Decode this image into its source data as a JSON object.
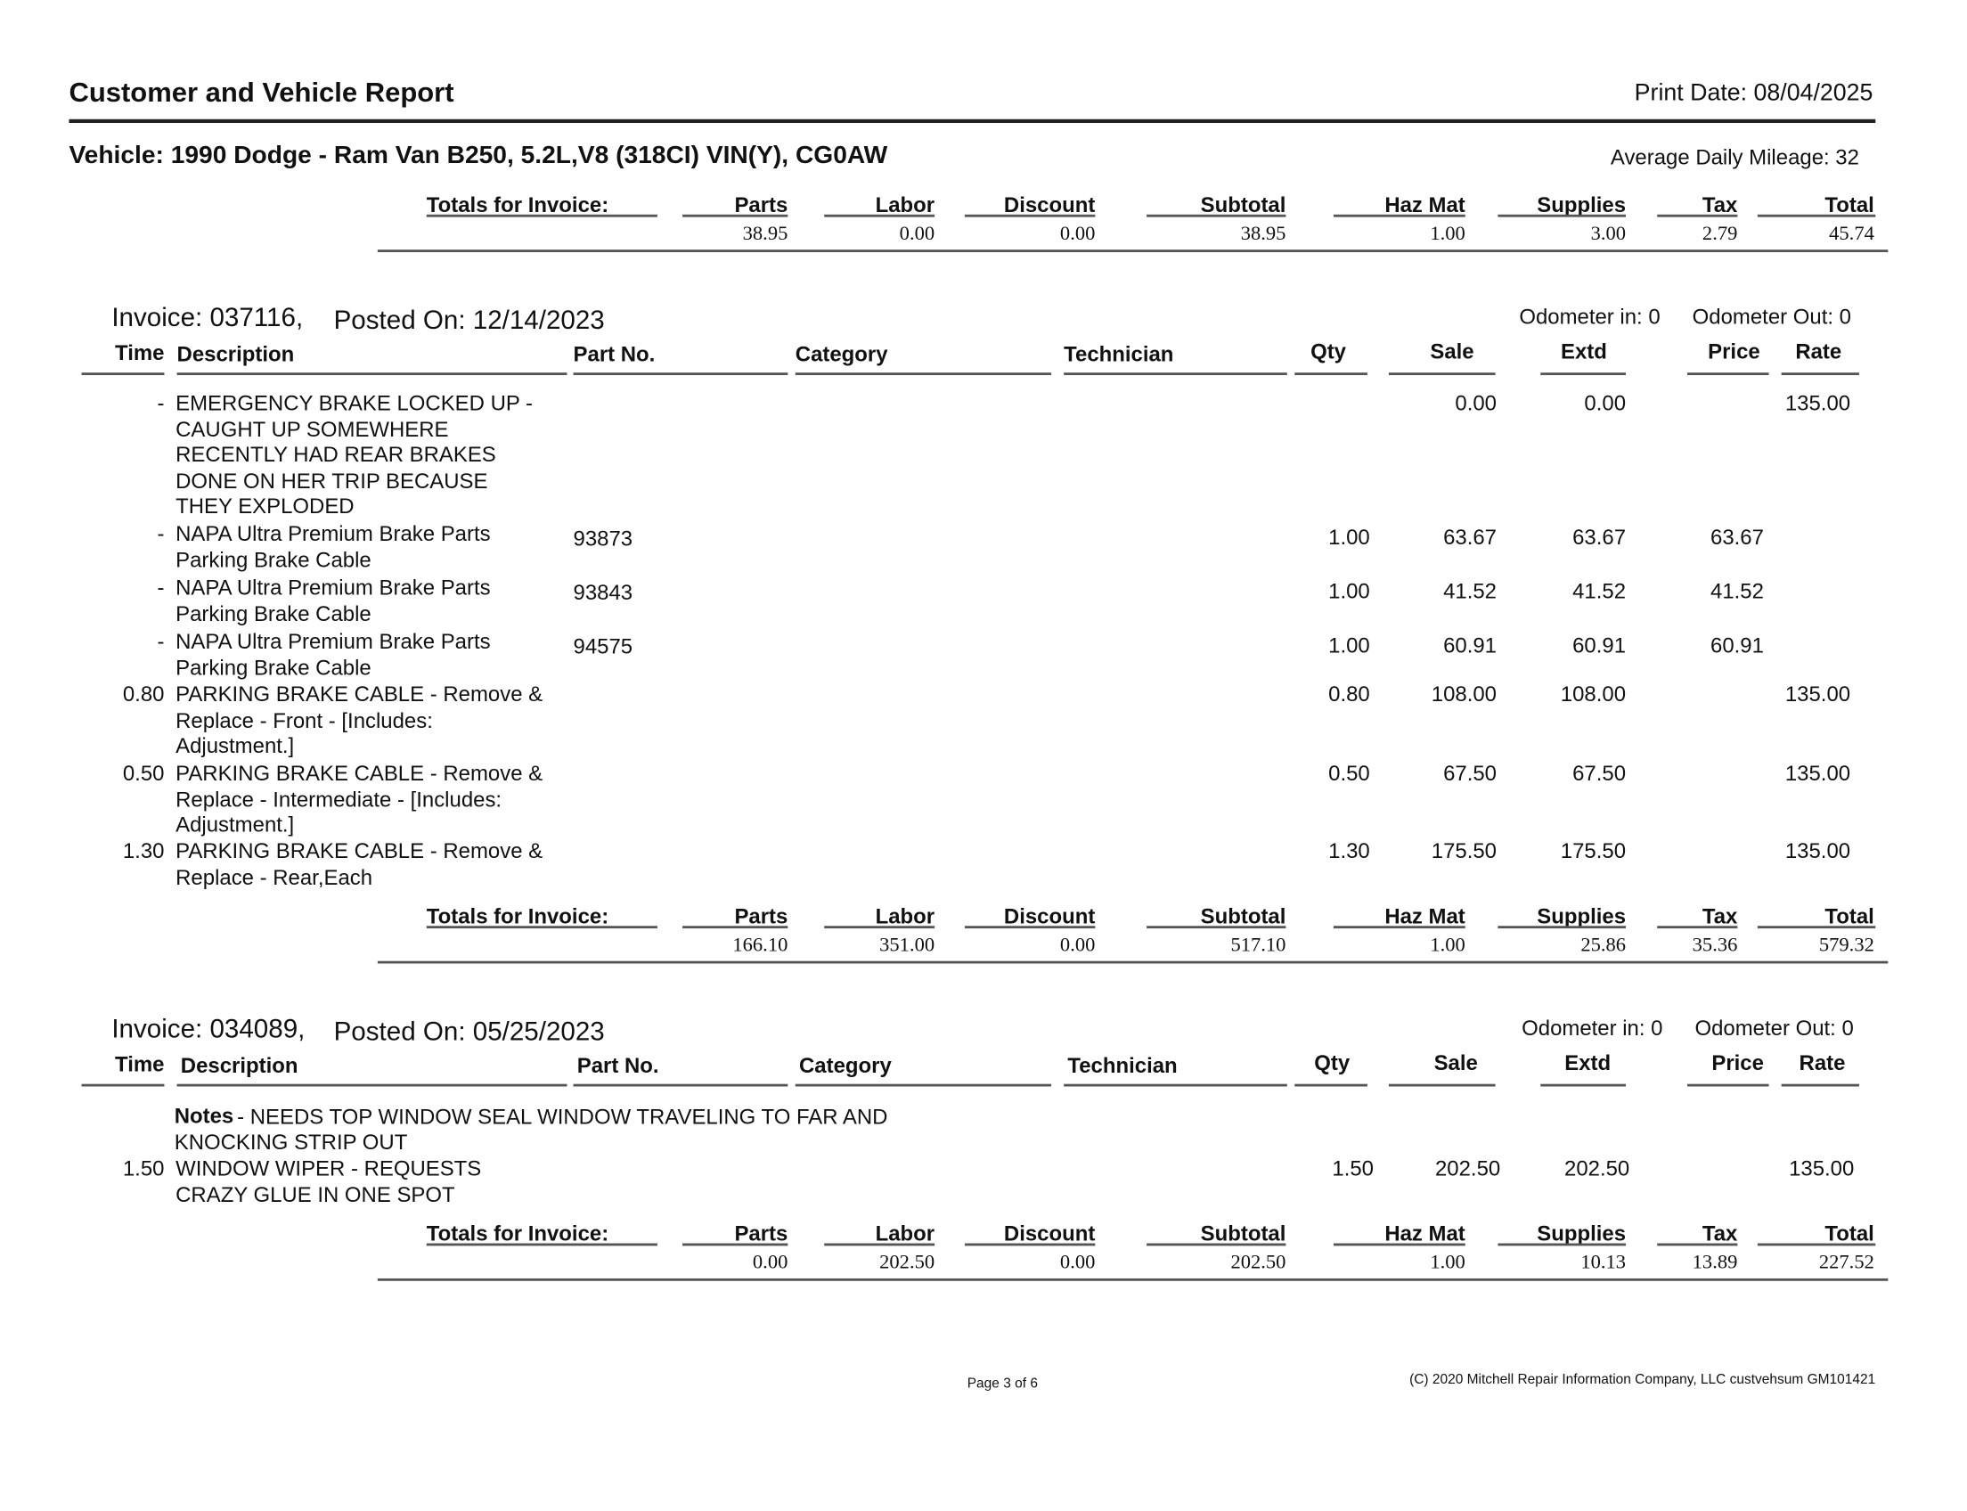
{
  "report": {
    "title": "Customer and Vehicle Report",
    "print_date": "Print Date: 08/04/2025",
    "vehicle": "Vehicle: 1990 Dodge - Ram Van B250, 5.2L,V8 (318CI) VIN(Y), CG0AW",
    "avg_mileage": "Average Daily Mileage: 32"
  },
  "totals_headers": {
    "label": "Totals for Invoice:",
    "parts": "Parts",
    "labor": "Labor",
    "discount": "Discount",
    "subtotal": "Subtotal",
    "hazmat": "Haz Mat",
    "supplies": "Supplies",
    "tax": "Tax",
    "total": "Total"
  },
  "item_headers": {
    "time": "Time",
    "description": "Description",
    "part_no": "Part No.",
    "category": "Category",
    "technician": "Technician",
    "qty": "Qty",
    "sale": "Sale",
    "extd": "Extd",
    "price": "Price",
    "rate": "Rate"
  },
  "vehicle_totals": {
    "parts": "38.95",
    "labor": "0.00",
    "discount": "0.00",
    "subtotal": "38.95",
    "hazmat": "1.00",
    "supplies": "3.00",
    "tax": "2.79",
    "total": "45.74"
  },
  "invoices": [
    {
      "invoice": "Invoice: 037116,",
      "posted": "Posted On:  12/14/2023",
      "odometer_in": "Odometer in: 0",
      "odometer_out": "Odometer Out: 0",
      "items": [
        {
          "time": "-",
          "desc": [
            "EMERGENCY BRAKE LOCKED UP -",
            "CAUGHT UP SOMEWHERE",
            "RECENTLY HAD REAR BRAKES",
            "DONE ON HER TRIP BECAUSE",
            "THEY EXPLODED"
          ],
          "part_no": "",
          "qty": "",
          "sale": "0.00",
          "extd": "0.00",
          "price": "",
          "rate": "135.00"
        },
        {
          "time": "-",
          "desc": [
            "NAPA Ultra Premium Brake Parts",
            "Parking Brake Cable"
          ],
          "part_no": "93873",
          "qty": "1.00",
          "sale": "63.67",
          "extd": "63.67",
          "price": "63.67",
          "rate": ""
        },
        {
          "time": "-",
          "desc": [
            "NAPA Ultra Premium Brake Parts",
            "Parking Brake Cable"
          ],
          "part_no": "93843",
          "qty": "1.00",
          "sale": "41.52",
          "extd": "41.52",
          "price": "41.52",
          "rate": ""
        },
        {
          "time": "-",
          "desc": [
            "NAPA Ultra Premium Brake Parts",
            "Parking Brake Cable"
          ],
          "part_no": "94575",
          "qty": "1.00",
          "sale": "60.91",
          "extd": "60.91",
          "price": "60.91",
          "rate": ""
        },
        {
          "time": "0.80",
          "desc": [
            "PARKING BRAKE CABLE - Remove &",
            "Replace - Front - [Includes:",
            "Adjustment.]"
          ],
          "part_no": "",
          "qty": "0.80",
          "sale": "108.00",
          "extd": "108.00",
          "price": "",
          "rate": "135.00"
        },
        {
          "time": "0.50",
          "desc": [
            "PARKING BRAKE CABLE - Remove &",
            "Replace - Intermediate - [Includes:",
            "Adjustment.]"
          ],
          "part_no": "",
          "qty": "0.50",
          "sale": "67.50",
          "extd": "67.50",
          "price": "",
          "rate": "135.00"
        },
        {
          "time": "1.30",
          "desc": [
            "PARKING BRAKE CABLE - Remove &",
            "Replace - Rear,Each"
          ],
          "part_no": "",
          "qty": "1.30",
          "sale": "175.50",
          "extd": "175.50",
          "price": "",
          "rate": "135.00"
        }
      ],
      "totals": {
        "parts": "166.10",
        "labor": "351.00",
        "discount": "0.00",
        "subtotal": "517.10",
        "hazmat": "1.00",
        "supplies": "25.86",
        "tax": "35.36",
        "total": "579.32"
      }
    },
    {
      "invoice": "Invoice: 034089,",
      "posted": "Posted On:  05/25/2023",
      "odometer_in": "Odometer in: 0",
      "odometer_out": "Odometer Out: 0",
      "notes_label": "Notes",
      "notes": [
        "- NEEDS TOP WINDOW SEAL WINDOW TRAVELING TO FAR AND",
        "KNOCKING STRIP OUT"
      ],
      "items": [
        {
          "time": "1.50",
          "desc": [
            "WINDOW WIPER - REQUESTS",
            "CRAZY GLUE IN ONE SPOT"
          ],
          "part_no": "",
          "qty": "1.50",
          "sale": "202.50",
          "extd": "202.50",
          "price": "",
          "rate": "135.00"
        }
      ],
      "totals": {
        "parts": "0.00",
        "labor": "202.50",
        "discount": "0.00",
        "subtotal": "202.50",
        "hazmat": "1.00",
        "supplies": "10.13",
        "tax": "13.89",
        "total": "227.52"
      }
    }
  ],
  "footer": {
    "page": "Page 3 of 6",
    "copyright": "(C) 2020 Mitchell Repair Information Company, LLC custvehsum  GM101421"
  }
}
